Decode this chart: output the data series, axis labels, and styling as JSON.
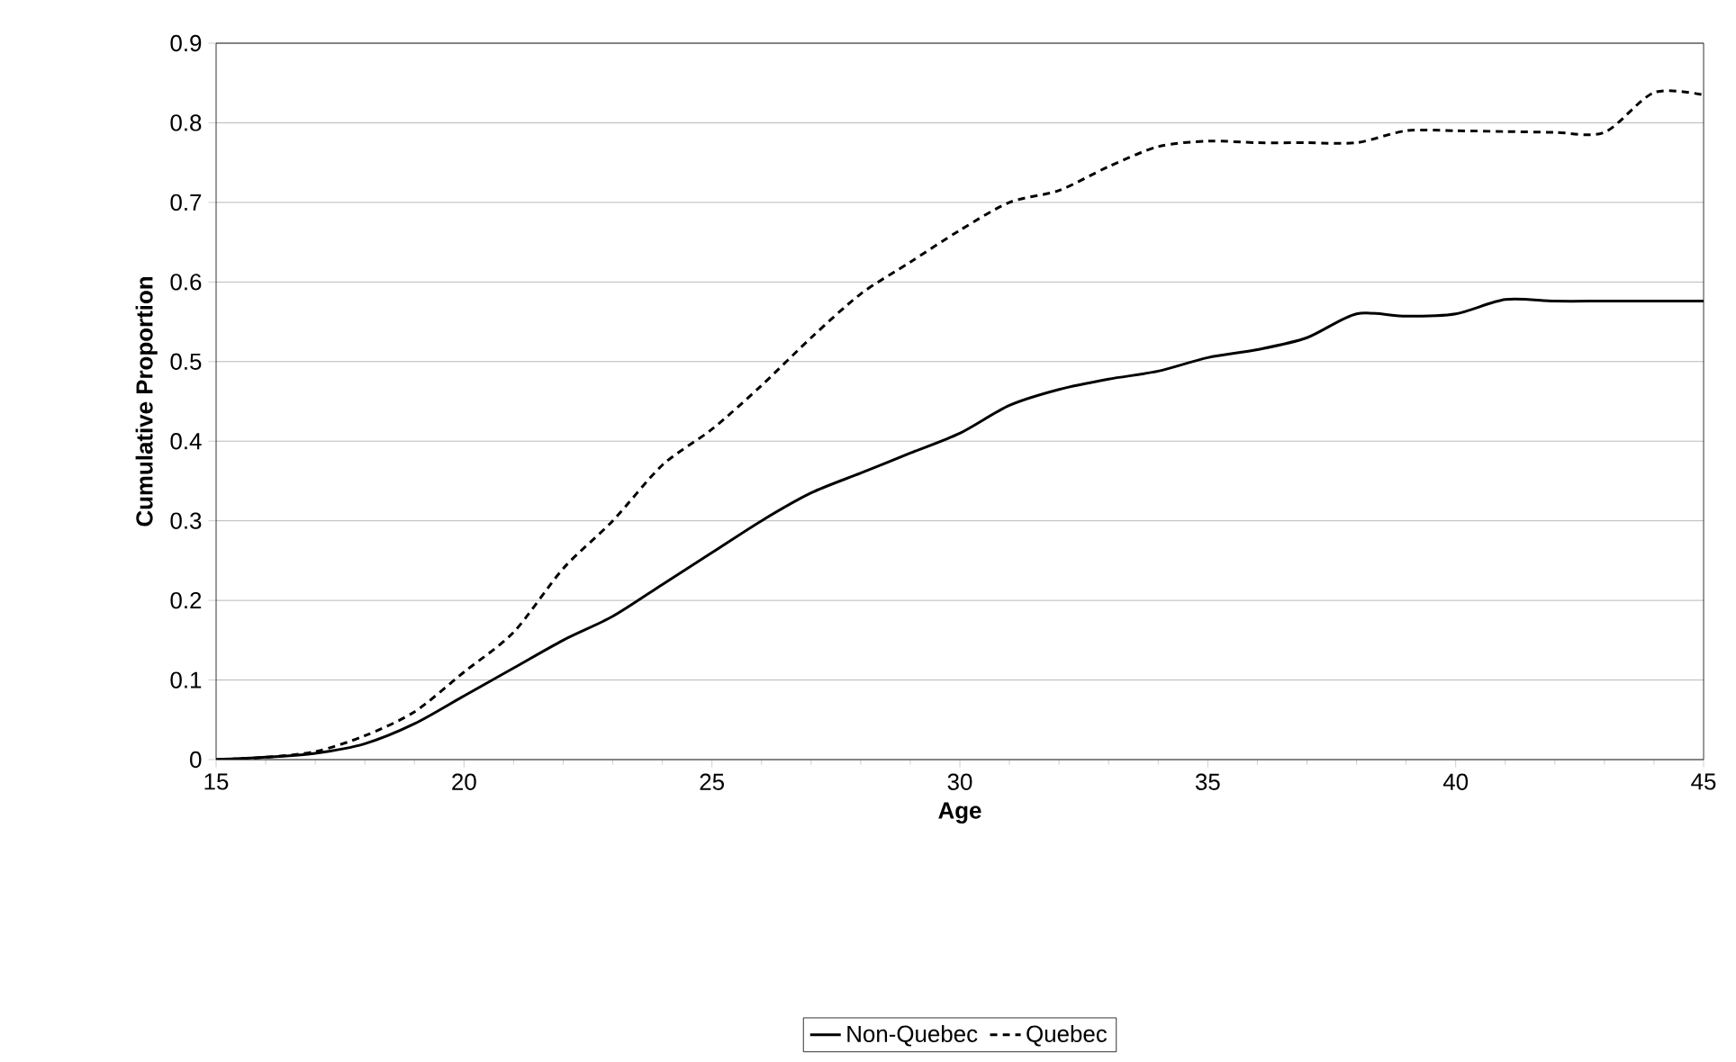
{
  "chart_data": {
    "type": "line",
    "xlabel": "Age",
    "ylabel": "Cumulative Proportion",
    "x": [
      15,
      16,
      17,
      18,
      19,
      20,
      21,
      22,
      23,
      24,
      25,
      26,
      27,
      28,
      29,
      30,
      31,
      32,
      33,
      34,
      35,
      36,
      37,
      38,
      39,
      40,
      41,
      42,
      43,
      44,
      45
    ],
    "series": [
      {
        "name": "Non-Quebec",
        "color": "#000000",
        "line_style": "solid",
        "values": [
          0,
          0.003,
          0.008,
          0.02,
          0.045,
          0.08,
          0.115,
          0.15,
          0.18,
          0.22,
          0.26,
          0.3,
          0.335,
          0.36,
          0.385,
          0.41,
          0.445,
          0.465,
          0.478,
          0.488,
          0.505,
          0.515,
          0.53,
          0.56,
          0.557,
          0.56,
          0.578,
          0.576,
          0.576,
          0.576,
          0.576
        ]
      },
      {
        "name": "Quebec",
        "color": "#000000",
        "line_style": "dashed",
        "values": [
          0,
          0.003,
          0.01,
          0.03,
          0.06,
          0.11,
          0.16,
          0.24,
          0.3,
          0.37,
          0.415,
          0.47,
          0.53,
          0.585,
          0.625,
          0.665,
          0.7,
          0.715,
          0.745,
          0.77,
          0.777,
          0.775,
          0.775,
          0.775,
          0.79,
          0.79,
          0.789,
          0.788,
          0.788,
          0.838,
          0.835
        ]
      }
    ],
    "xlim": [
      15,
      45
    ],
    "xticks": [
      15,
      20,
      25,
      30,
      35,
      40,
      45
    ],
    "ylim": [
      0,
      0.9
    ],
    "yticks": [
      0,
      0.1,
      0.2,
      0.3,
      0.4,
      0.5,
      0.6,
      0.7,
      0.8,
      0.9
    ],
    "grid": "y",
    "legend": "bottom",
    "marker": "none"
  }
}
